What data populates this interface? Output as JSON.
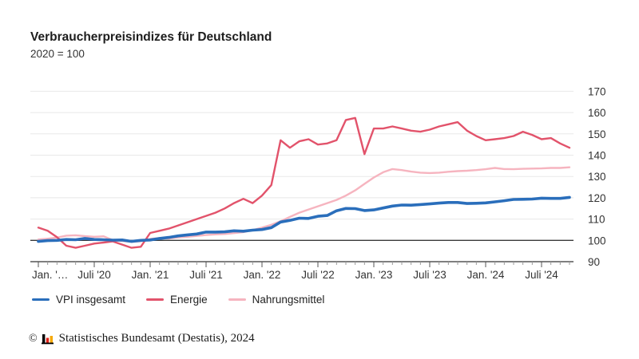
{
  "title": "Verbraucherpreisindizes für Deutschland",
  "subtitle": "2020 = 100",
  "colors": {
    "grid": "#e8e8e8",
    "baseline_100": "#3a3a3a",
    "axis": "#555555",
    "minor_tick": "#999999",
    "tick_label": "#333333",
    "vpi_blue": "#2a6ebb",
    "energie_red": "#e2536b",
    "nahrung_pink": "#f6b4bf",
    "logo_black": "#000000",
    "logo_red": "#e32219",
    "logo_gold": "#f6a800"
  },
  "chart_data": {
    "type": "line",
    "title": "Verbraucherpreisindizes für Deutschland",
    "subtitle": "2020 = 100",
    "x_unit": "month",
    "months": [
      "2020-01",
      "2020-02",
      "2020-03",
      "2020-04",
      "2020-05",
      "2020-06",
      "2020-07",
      "2020-08",
      "2020-09",
      "2020-10",
      "2020-11",
      "2020-12",
      "2021-01",
      "2021-02",
      "2021-03",
      "2021-04",
      "2021-05",
      "2021-06",
      "2021-07",
      "2021-08",
      "2021-09",
      "2021-10",
      "2021-11",
      "2021-12",
      "2022-01",
      "2022-02",
      "2022-03",
      "2022-04",
      "2022-05",
      "2022-06",
      "2022-07",
      "2022-08",
      "2022-09",
      "2022-10",
      "2022-11",
      "2022-12",
      "2023-01",
      "2023-02",
      "2023-03",
      "2023-04",
      "2023-05",
      "2023-06",
      "2023-07",
      "2023-08",
      "2023-09",
      "2023-10",
      "2023-11",
      "2023-12",
      "2024-01",
      "2024-02",
      "2024-03",
      "2024-04",
      "2024-05",
      "2024-06",
      "2024-07",
      "2024-08",
      "2024-09",
      "2024-10"
    ],
    "series": [
      {
        "name": "VPI insgesamt",
        "color": "#2a6ebb",
        "width": 3.6,
        "values": [
          99.5,
          99.9,
          100.0,
          100.4,
          100.3,
          100.9,
          100.4,
          100.3,
          100.1,
          100.2,
          99.5,
          100.0,
          100.2,
          100.9,
          101.4,
          102.1,
          102.6,
          103.0,
          103.9,
          103.9,
          104.0,
          104.5,
          104.3,
          104.8,
          105.1,
          106.0,
          108.6,
          109.4,
          110.4,
          110.3,
          111.3,
          111.7,
          113.9,
          115.0,
          114.9,
          114.0,
          114.3,
          115.2,
          116.1,
          116.6,
          116.5,
          116.8,
          117.1,
          117.5,
          117.8,
          117.8,
          117.3,
          117.4,
          117.6,
          118.1,
          118.6,
          119.2,
          119.3,
          119.4,
          119.8,
          119.7,
          119.7,
          120.2
        ]
      },
      {
        "name": "Energie",
        "color": "#e2536b",
        "width": 2.4,
        "values": [
          106.0,
          104.5,
          101.5,
          97.5,
          96.5,
          97.5,
          98.5,
          99.0,
          99.5,
          98.0,
          96.5,
          97.0,
          103.5,
          104.5,
          105.5,
          107.0,
          108.5,
          110.0,
          111.5,
          113.0,
          115.0,
          117.5,
          119.5,
          117.5,
          121.0,
          126.0,
          147.0,
          143.5,
          146.5,
          147.5,
          145.0,
          145.5,
          147.0,
          156.5,
          157.5,
          140.5,
          152.5,
          152.5,
          153.5,
          152.5,
          151.5,
          151.0,
          152.0,
          153.5,
          154.5,
          155.5,
          151.5,
          149.0,
          147.0,
          147.5,
          148.0,
          149.0,
          151.0,
          149.5,
          147.5,
          148.0,
          145.5,
          143.5
        ]
      },
      {
        "name": "Nahrungsmittel",
        "color": "#f6b4bf",
        "width": 2.4,
        "values": [
          100.4,
          100.8,
          101.3,
          102.2,
          102.4,
          102.0,
          101.7,
          101.9,
          100.1,
          99.7,
          99.3,
          99.6,
          100.7,
          101.1,
          100.9,
          101.4,
          101.7,
          102.1,
          102.5,
          102.8,
          103.0,
          103.4,
          103.9,
          104.8,
          106.0,
          107.3,
          109.0,
          111.0,
          113.0,
          114.5,
          116.0,
          117.5,
          119.0,
          121.0,
          123.5,
          126.5,
          129.5,
          132.0,
          133.5,
          133.0,
          132.3,
          131.8,
          131.6,
          131.8,
          132.2,
          132.5,
          132.7,
          133.0,
          133.4,
          134.0,
          133.5,
          133.4,
          133.6,
          133.7,
          133.8,
          134.0,
          134.0,
          134.3
        ]
      }
    ],
    "y_axis": {
      "min": 90,
      "max": 170,
      "step": 10,
      "ticks": [
        90,
        100,
        110,
        120,
        130,
        140,
        150,
        160,
        170
      ],
      "baseline_value": 100,
      "position": "right",
      "grid": true
    },
    "x_axis": {
      "minor_tick_every": 1,
      "major_tick_every": 6,
      "labels": [
        {
          "index": 0,
          "label": "Jan. '…"
        },
        {
          "index": 6,
          "label": "Juli '20"
        },
        {
          "index": 12,
          "label": "Jan. '21"
        },
        {
          "index": 18,
          "label": "Juli '21"
        },
        {
          "index": 24,
          "label": "Jan. '22"
        },
        {
          "index": 30,
          "label": "Juli '22"
        },
        {
          "index": 36,
          "label": "Jan. '23"
        },
        {
          "index": 42,
          "label": "Juli '23"
        },
        {
          "index": 48,
          "label": "Jan. '24"
        },
        {
          "index": 54,
          "label": "Juli '24"
        }
      ]
    },
    "legend_position": "bottom-left"
  },
  "legend": {
    "items": [
      {
        "label": "VPI insgesamt"
      },
      {
        "label": "Energie"
      },
      {
        "label": "Nahrungsmittel"
      }
    ]
  },
  "footer": {
    "copyright": "©",
    "text": "Statistisches Bundesamt (Destatis), 2024"
  }
}
